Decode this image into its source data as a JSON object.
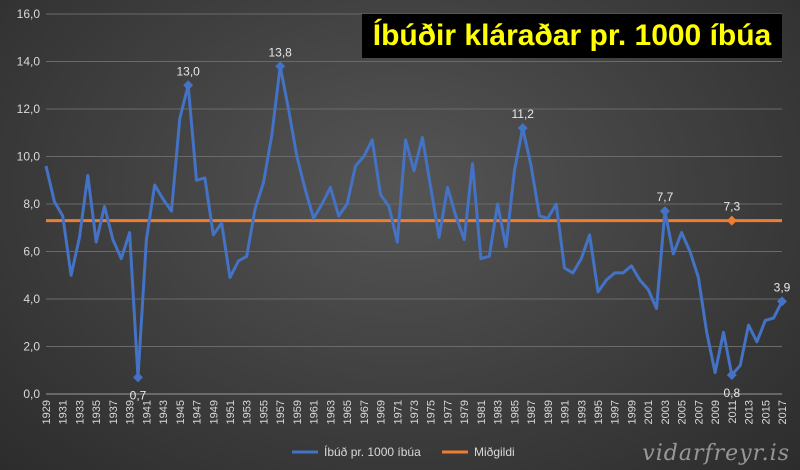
{
  "chart_data": {
    "type": "line",
    "title": "Íbúðir kláraðar pr. 1000 íbúa",
    "ylim": [
      0,
      16
    ],
    "y_ticks": [
      "0,0",
      "2,0",
      "4,0",
      "6,0",
      "8,0",
      "10,0",
      "12,0",
      "14,0",
      "16,0"
    ],
    "grid": true,
    "legend_placement": "bottom",
    "x": [
      1929,
      1930,
      1931,
      1932,
      1933,
      1934,
      1935,
      1936,
      1937,
      1938,
      1939,
      1940,
      1941,
      1942,
      1943,
      1944,
      1945,
      1946,
      1947,
      1948,
      1949,
      1950,
      1951,
      1952,
      1953,
      1954,
      1955,
      1956,
      1957,
      1958,
      1959,
      1960,
      1961,
      1962,
      1963,
      1964,
      1965,
      1966,
      1967,
      1968,
      1969,
      1970,
      1971,
      1972,
      1973,
      1974,
      1975,
      1976,
      1977,
      1978,
      1979,
      1980,
      1981,
      1982,
      1983,
      1984,
      1985,
      1986,
      1987,
      1988,
      1989,
      1990,
      1991,
      1992,
      1993,
      1994,
      1995,
      1996,
      1997,
      1998,
      1999,
      2000,
      2001,
      2002,
      2003,
      2004,
      2005,
      2006,
      2007,
      2008,
      2009,
      2010,
      2011,
      2012,
      2013,
      2014,
      2015,
      2016,
      2017
    ],
    "x_tick_labels": [
      "1929",
      "1931",
      "1933",
      "1935",
      "1937",
      "1939",
      "1941",
      "1943",
      "1945",
      "1947",
      "1949",
      "1951",
      "1953",
      "1955",
      "1957",
      "1959",
      "1961",
      "1963",
      "1965",
      "1967",
      "1969",
      "1971",
      "1973",
      "1975",
      "1977",
      "1979",
      "1981",
      "1983",
      "1985",
      "1987",
      "1989",
      "1991",
      "1993",
      "1995",
      "1997",
      "1999",
      "2001",
      "2003",
      "2005",
      "2007",
      "2009",
      "2011",
      "2013",
      "2015",
      "2017"
    ],
    "series": [
      {
        "name": "Íbúð pr. 1000 íbúa",
        "color": "#4472c4",
        "values": [
          9.6,
          8.1,
          7.5,
          5.0,
          6.6,
          9.2,
          6.4,
          7.9,
          6.5,
          5.7,
          6.8,
          0.7,
          6.5,
          8.8,
          8.2,
          7.7,
          11.6,
          13.0,
          9.0,
          9.1,
          6.7,
          7.2,
          4.9,
          5.6,
          5.8,
          7.8,
          8.9,
          10.9,
          13.8,
          12.0,
          10.0,
          8.6,
          7.4,
          8.0,
          8.7,
          7.5,
          8.0,
          9.6,
          10.0,
          10.7,
          8.4,
          7.9,
          6.4,
          10.7,
          9.4,
          10.8,
          8.7,
          6.6,
          8.7,
          7.5,
          6.5,
          9.7,
          5.7,
          5.8,
          8.0,
          6.2,
          9.4,
          11.2,
          9.6,
          7.5,
          7.4,
          8.0,
          5.3,
          5.1,
          5.7,
          6.7,
          4.3,
          4.8,
          5.1,
          5.1,
          5.4,
          4.8,
          4.4,
          3.6,
          7.7,
          5.9,
          6.8,
          6.0,
          4.9,
          2.6,
          0.9,
          2.6,
          0.8,
          1.2,
          2.9,
          2.2,
          3.1,
          3.2,
          3.9
        ]
      },
      {
        "name": "Miðgildi",
        "color": "#ed7d31",
        "values_constant": 7.3
      }
    ],
    "annotations": [
      {
        "x": 1940,
        "y": 0.7,
        "label": "0,7",
        "position": "below",
        "series": 0
      },
      {
        "x": 1946,
        "y": 13.0,
        "label": "13,0",
        "position": "above",
        "series": 0
      },
      {
        "x": 1957,
        "y": 13.8,
        "label": "13,8",
        "position": "above",
        "series": 0
      },
      {
        "x": 1986,
        "y": 11.2,
        "label": "11,2",
        "position": "above",
        "series": 0
      },
      {
        "x": 2003,
        "y": 7.7,
        "label": "7,7",
        "position": "above",
        "series": 0
      },
      {
        "x": 2011,
        "y": 0.8,
        "label": "0,8",
        "position": "below",
        "series": 0
      },
      {
        "x": 2017,
        "y": 3.9,
        "label": "3,9",
        "position": "above",
        "series": 0
      },
      {
        "x": 2011,
        "y": 7.3,
        "label": "7,3",
        "position": "above",
        "series": 1
      }
    ]
  },
  "watermark": "vidarfreyr.is"
}
